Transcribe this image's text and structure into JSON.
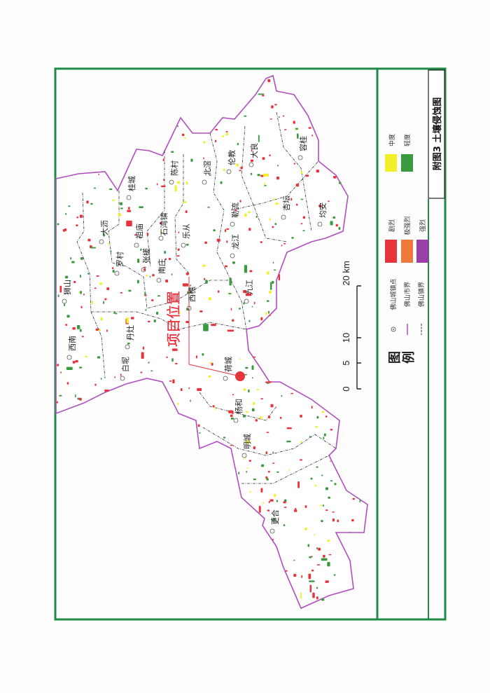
{
  "title": "附图3  土壤侵蚀图",
  "project_label": "项目位置",
  "scale_bar": {
    "ticks": [
      "0",
      "5",
      "10",
      "20 km"
    ]
  },
  "legend": {
    "title_1": "图",
    "title_2": "例",
    "symbols": [
      {
        "label": "佛山城镇点",
        "icon": "town-point-icon"
      },
      {
        "label": "佛山市界",
        "color": "#b04ec0"
      },
      {
        "label": "佛山镇界",
        "color": "#333333"
      }
    ],
    "classes": [
      {
        "label": "剧烈",
        "color": "#e8323c"
      },
      {
        "label": "极强烈",
        "color": "#f07a3c"
      },
      {
        "label": "强烈",
        "color": "#9a3fa6"
      },
      {
        "label": "中度",
        "color": "#f2f02a"
      },
      {
        "label": "轻度",
        "color": "#3a9a3f"
      }
    ]
  },
  "towns": [
    "桂城",
    "陈村",
    "北滘",
    "伦教",
    "大良",
    "容桂",
    "杏坛",
    "均安",
    "勒流",
    "乐从",
    "龙江",
    "九江",
    "西樵",
    "南庄",
    "张槎",
    "石湾镇",
    "祖庙",
    "罗村",
    "大沥",
    "狮山",
    "丹灶",
    "西南",
    "白坭",
    "荷城",
    "杨和",
    "明城",
    "更合"
  ],
  "colors": {
    "frame": "#1e8a46",
    "city_boundary": "#b04ec0",
    "project_marker": "#e8323c"
  }
}
